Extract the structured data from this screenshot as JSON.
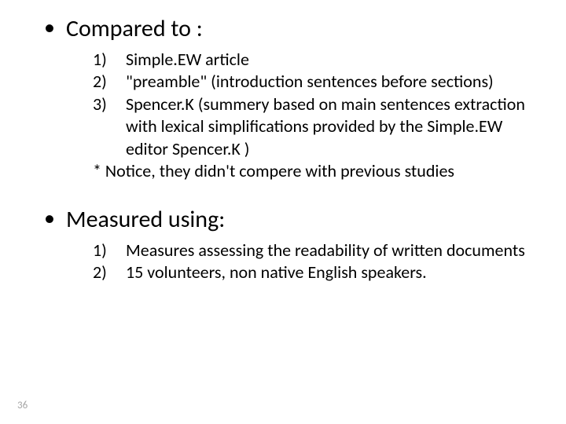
{
  "background_color": "#ffffff",
  "text_color": "#000000",
  "page_number_color": "#a6a6a6",
  "font_family": "Calibri, Arial, sans-serif",
  "main_fontsize": 30,
  "sub_fontsize": 22,
  "pagenum_fontsize": 13,
  "section1": {
    "bullet": "•",
    "title": "Compared to :",
    "items": [
      {
        "num": "1)",
        "text": " Simple.EW article"
      },
      {
        "num": "2)",
        "text": " \"preamble\" (introduction sentences before sections)"
      },
      {
        "num": "3)",
        "text": " Spencer.K (summery based on main sentences extraction with lexical  simplifications provided by the Simple.EW editor Spencer.K )"
      }
    ],
    "note": "* Notice, they didn't compere with previous studies"
  },
  "section2": {
    "bullet": "•",
    "title": "Measured using:",
    "items": [
      {
        "num": "1)",
        "text": "Measures assessing the readability of written documents"
      },
      {
        "num": "2)",
        "text": "15 volunteers, non native English speakers."
      }
    ]
  },
  "page_number": "36"
}
